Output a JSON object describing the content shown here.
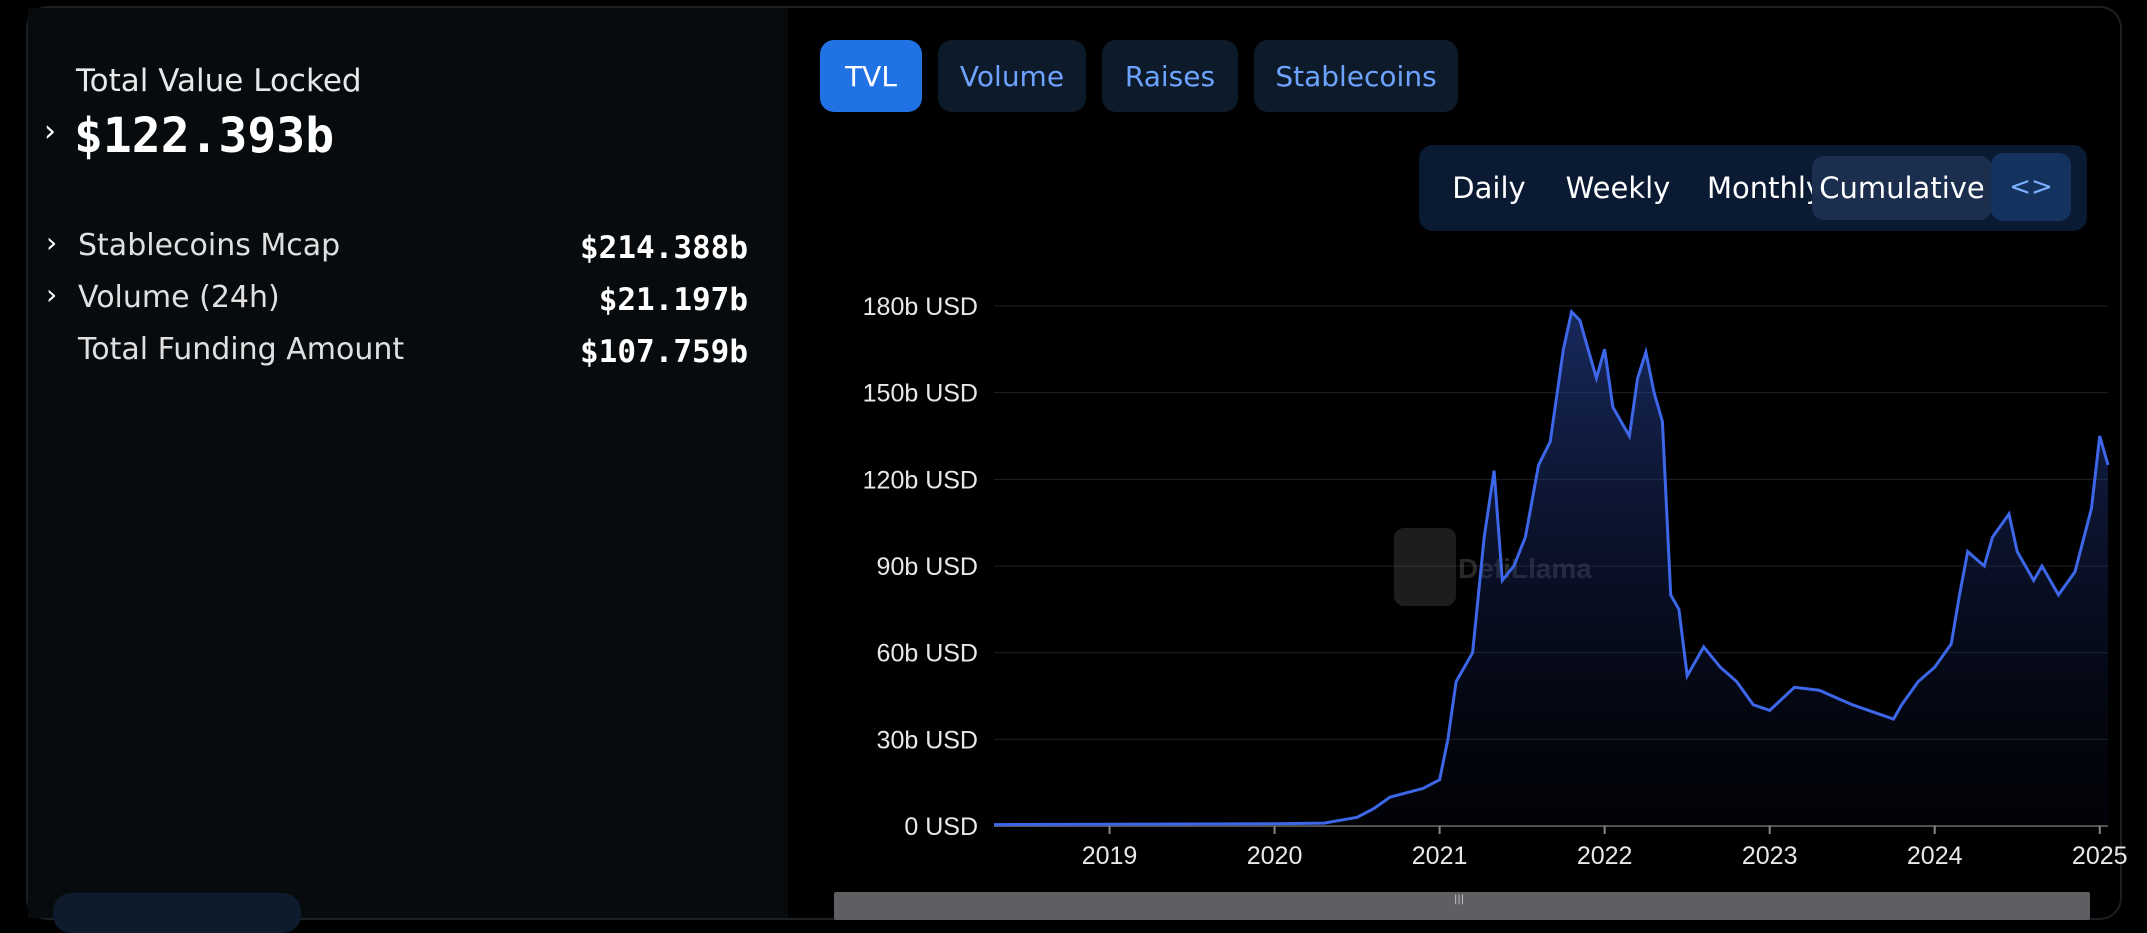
{
  "summary": {
    "tvl_label": "Total Value Locked",
    "tvl_value": "$122.393b",
    "stats": [
      {
        "label": "Stablecoins Mcap",
        "value": "$214.388b",
        "expandable": true
      },
      {
        "label": "Volume (24h)",
        "value": "$21.197b",
        "expandable": true
      },
      {
        "label": "Total Funding Amount",
        "value": "$107.759b",
        "expandable": false
      }
    ]
  },
  "tabs": [
    {
      "label": "TVL",
      "active": true
    },
    {
      "label": "Volume",
      "active": false
    },
    {
      "label": "Raises",
      "active": false
    },
    {
      "label": "Stablecoins",
      "active": false
    }
  ],
  "ranges": [
    {
      "label": "Daily",
      "active": false
    },
    {
      "label": "Weekly",
      "active": false
    },
    {
      "label": "Monthly",
      "active": false
    },
    {
      "label": "Cumulative",
      "active": true
    }
  ],
  "embed_icon": "<>",
  "watermark": "DefiLlama",
  "colors": {
    "line": "#3d67e8",
    "active_tab": "#2172e5",
    "tab_text": "#6ea2ff"
  },
  "chart_data": {
    "type": "area",
    "title": "",
    "xlabel": "",
    "ylabel": "",
    "ylim": [
      0,
      180
    ],
    "y_ticks": [
      "0 USD",
      "30b USD",
      "60b USD",
      "90b USD",
      "120b USD",
      "150b USD",
      "180b USD"
    ],
    "x_ticks": [
      "2019",
      "2020",
      "2021",
      "2022",
      "2023",
      "2024",
      "2025"
    ],
    "series": [
      {
        "values_unit": "b USD",
        "x": [
          2018.3,
          2019.0,
          2019.5,
          2020.0,
          2020.3,
          2020.5,
          2020.6,
          2020.7,
          2020.9,
          2021.0,
          2021.05,
          2021.1,
          2021.2,
          2021.27,
          2021.33,
          2021.38,
          2021.45,
          2021.52,
          2021.6,
          2021.67,
          2021.75,
          2021.8,
          2021.85,
          2021.9,
          2021.95,
          2022.0,
          2022.05,
          2022.1,
          2022.15,
          2022.2,
          2022.25,
          2022.3,
          2022.35,
          2022.4,
          2022.45,
          2022.5,
          2022.6,
          2022.7,
          2022.8,
          2022.9,
          2023.0,
          2023.15,
          2023.3,
          2023.5,
          2023.6,
          2023.7,
          2023.75,
          2023.8,
          2023.9,
          2024.0,
          2024.1,
          2024.15,
          2024.2,
          2024.3,
          2024.35,
          2024.45,
          2024.5,
          2024.6,
          2024.65,
          2024.75,
          2024.85,
          2024.95,
          2025.0,
          2025.05
        ],
        "y": [
          0.5,
          0.6,
          0.7,
          0.8,
          1,
          3,
          6,
          10,
          13,
          16,
          30,
          50,
          60,
          100,
          123,
          85,
          90,
          100,
          125,
          133,
          165,
          178,
          175,
          165,
          155,
          165,
          145,
          140,
          135,
          155,
          164,
          150,
          140,
          80,
          75,
          52,
          62,
          55,
          50,
          42,
          40,
          48,
          47,
          42,
          40,
          38,
          37,
          42,
          50,
          55,
          63,
          80,
          95,
          90,
          100,
          108,
          95,
          85,
          90,
          80,
          88,
          110,
          135,
          125
        ]
      }
    ]
  }
}
